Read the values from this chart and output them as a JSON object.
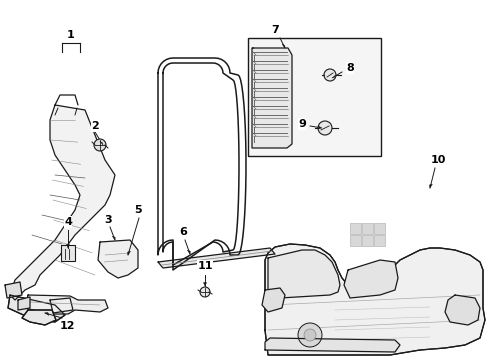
{
  "background_color": "#ffffff",
  "line_color": "#1a1a1a",
  "fig_width": 4.89,
  "fig_height": 3.6,
  "dpi": 100,
  "label_fontsize": 8,
  "label_bold": true
}
